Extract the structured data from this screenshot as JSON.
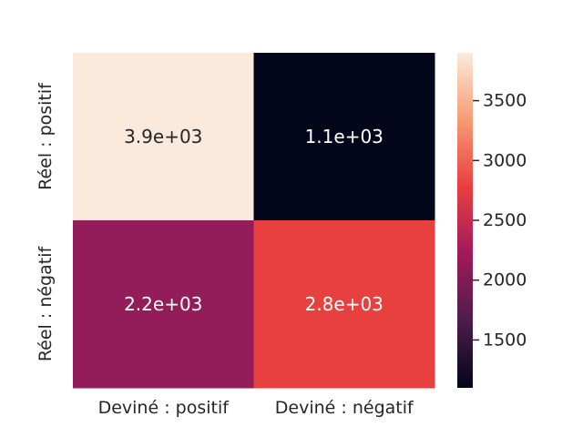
{
  "chart_data": {
    "type": "heatmap",
    "title": "",
    "xlabel": "",
    "ylabel": "",
    "x_categories": [
      "Deviné : positif",
      "Deviné : négatif"
    ],
    "y_categories": [
      "Réel : positif",
      "Réel : négatif"
    ],
    "values": [
      [
        3900,
        1100
      ],
      [
        2200,
        2800
      ]
    ],
    "annotations": [
      [
        "3.9e+03",
        "1.1e+03"
      ],
      [
        "2.2e+03",
        "2.8e+03"
      ]
    ],
    "annotation_colors": [
      [
        "#262626",
        "#ffffff"
      ],
      [
        "#ffffff",
        "#ffffff"
      ]
    ],
    "colormap": "rocket",
    "cell_colors": [
      [
        "#fbe9dc",
        "#03051a"
      ],
      [
        "#931c5a",
        "#e83f3f"
      ]
    ],
    "colorbar": {
      "range": [
        1100,
        3900
      ],
      "ticks": [
        1500,
        2000,
        2500,
        3000,
        3500
      ],
      "tick_labels": [
        "1500",
        "2000",
        "2500",
        "3000",
        "3500"
      ],
      "gradient_colors": [
        "#03051a",
        "#4c1d4b",
        "#a11a5b",
        "#e83f3f",
        "#f69c73",
        "#faebdd"
      ]
    },
    "grid": false,
    "legend": "colorbar-right"
  }
}
